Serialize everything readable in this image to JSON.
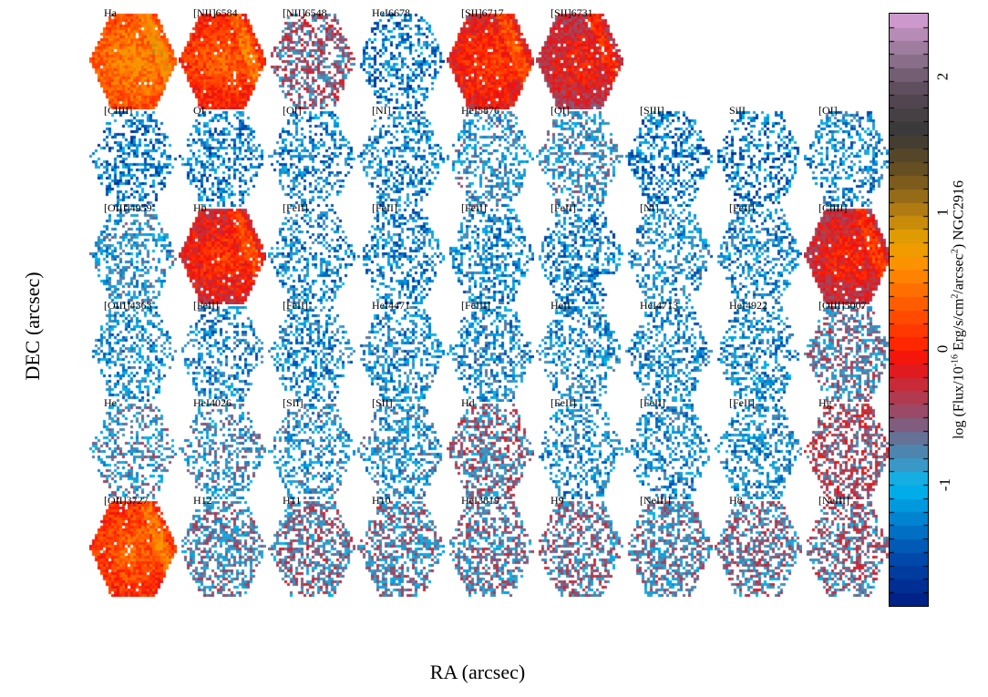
{
  "chart_data": {
    "type": "heatmap",
    "xlabel": "RA (arcsec)",
    "ylabel": "DEC (arcsec)",
    "colorbar": {
      "label_parts": [
        "log (Flux/10",
        "-16",
        " Erg/s/cm",
        "2",
        "/arcsec",
        "2",
        ") NGC2916"
      ],
      "range": [
        -1.9,
        2.47
      ],
      "ticks": [
        -1,
        0,
        1,
        2
      ],
      "tick_labels": [
        "-1",
        "0",
        "1",
        "2"
      ]
    },
    "grid": {
      "rows": 6,
      "columns": 9
    },
    "panels": [
      {
        "label": "Ha",
        "row": 0,
        "col": 0,
        "level": 0.25
      },
      {
        "label": "[NII]6584",
        "row": 0,
        "col": 1,
        "level": 0.0
      },
      {
        "label": "[NII]6548",
        "row": 0,
        "col": 2,
        "level": -0.55
      },
      {
        "label": "HeI6678",
        "row": 0,
        "col": 3,
        "level": -1.3
      },
      {
        "label": "[SII]6717",
        "row": 0,
        "col": 4,
        "level": -0.15
      },
      {
        "label": "[SII]6731",
        "row": 0,
        "col": 5,
        "level": -0.35
      },
      {
        "label": "[ClIII]",
        "row": 1,
        "col": 0,
        "level": -1.3
      },
      {
        "label": "OI",
        "row": 1,
        "col": 1,
        "level": -1.25
      },
      {
        "label": "[OI]",
        "row": 1,
        "col": 2,
        "level": -1.2
      },
      {
        "label": "[NI]",
        "row": 1,
        "col": 3,
        "level": -1.2
      },
      {
        "label": "HeI5876",
        "row": 1,
        "col": 4,
        "level": -0.95
      },
      {
        "label": "[OI]",
        "row": 1,
        "col": 5,
        "level": -0.9
      },
      {
        "label": "[SIII]",
        "row": 1,
        "col": 6,
        "level": -1.3
      },
      {
        "label": "SiII",
        "row": 1,
        "col": 7,
        "level": -1.35
      },
      {
        "label": "[OI]",
        "row": 1,
        "col": 8,
        "level": -1.15
      },
      {
        "label": "[OIII]4959",
        "row": 2,
        "col": 0,
        "level": -1.0
      },
      {
        "label": "Hb",
        "row": 2,
        "col": 1,
        "level": -0.2
      },
      {
        "label": "[FeII]",
        "row": 2,
        "col": 2,
        "level": -1.2
      },
      {
        "label": "[FeII]",
        "row": 2,
        "col": 3,
        "level": -1.2
      },
      {
        "label": "[FeII]",
        "row": 2,
        "col": 4,
        "level": -1.15
      },
      {
        "label": "[FeII]",
        "row": 2,
        "col": 5,
        "level": -1.2
      },
      {
        "label": "[NI]",
        "row": 2,
        "col": 6,
        "level": -1.1
      },
      {
        "label": "[FeII]",
        "row": 2,
        "col": 7,
        "level": -1.15
      },
      {
        "label": "[ClIII]",
        "row": 2,
        "col": 8,
        "level": -0.3
      },
      {
        "label": "[OIII]4363",
        "row": 3,
        "col": 0,
        "level": -1.1
      },
      {
        "label": "[FeII]",
        "row": 3,
        "col": 1,
        "level": -1.15
      },
      {
        "label": "[FeII]",
        "row": 3,
        "col": 2,
        "level": -1.15
      },
      {
        "label": "HeI4471",
        "row": 3,
        "col": 3,
        "level": -1.1
      },
      {
        "label": "[FeIII]",
        "row": 3,
        "col": 4,
        "level": -1.1
      },
      {
        "label": "HeII",
        "row": 3,
        "col": 5,
        "level": -1.1
      },
      {
        "label": "HeI4713",
        "row": 3,
        "col": 6,
        "level": -1.15
      },
      {
        "label": "HeI4922",
        "row": 3,
        "col": 7,
        "level": -1.15
      },
      {
        "label": "[OIII]5007",
        "row": 3,
        "col": 8,
        "level": -0.7
      },
      {
        "label": "He",
        "row": 4,
        "col": 0,
        "level": -0.85
      },
      {
        "label": "HeI4026",
        "row": 4,
        "col": 1,
        "level": -0.9
      },
      {
        "label": "[SII]",
        "row": 4,
        "col": 2,
        "level": -1.0
      },
      {
        "label": "[SII]",
        "row": 4,
        "col": 3,
        "level": -1.0
      },
      {
        "label": "Hd",
        "row": 4,
        "col": 4,
        "level": -0.6
      },
      {
        "label": "[FeII]",
        "row": 4,
        "col": 5,
        "level": -1.1
      },
      {
        "label": "[FeII]",
        "row": 4,
        "col": 6,
        "level": -1.1
      },
      {
        "label": "[FeII]",
        "row": 4,
        "col": 7,
        "level": -1.1
      },
      {
        "label": "Hg",
        "row": 4,
        "col": 8,
        "level": -0.45
      },
      {
        "label": "[OII]3727",
        "row": 5,
        "col": 0,
        "level": 0.05
      },
      {
        "label": "H12",
        "row": 5,
        "col": 1,
        "level": -0.75
      },
      {
        "label": "H11",
        "row": 5,
        "col": 2,
        "level": -0.65
      },
      {
        "label": "H10",
        "row": 5,
        "col": 3,
        "level": -0.7
      },
      {
        "label": "HeI3819",
        "row": 5,
        "col": 4,
        "level": -0.7
      },
      {
        "label": "H9",
        "row": 5,
        "col": 5,
        "level": -0.65
      },
      {
        "label": "[NeIII]",
        "row": 5,
        "col": 6,
        "level": -0.75
      },
      {
        "label": "H8",
        "row": 5,
        "col": 7,
        "level": -0.65
      },
      {
        "label": "[NeIII]",
        "row": 5,
        "col": 8,
        "level": -0.6
      }
    ],
    "colormap": [
      "#001a80",
      "#0050b0",
      "#0090d8",
      "#00b8f0",
      "#30a0d0",
      "#5a7aa0",
      "#905070",
      "#c03040",
      "#ee1010",
      "#ff2000",
      "#ff5500",
      "#ff9000",
      "#e8a000",
      "#b88010",
      "#6a5020",
      "#383838",
      "#5a4a58",
      "#9a7a9a",
      "#d8a0d8"
    ]
  }
}
